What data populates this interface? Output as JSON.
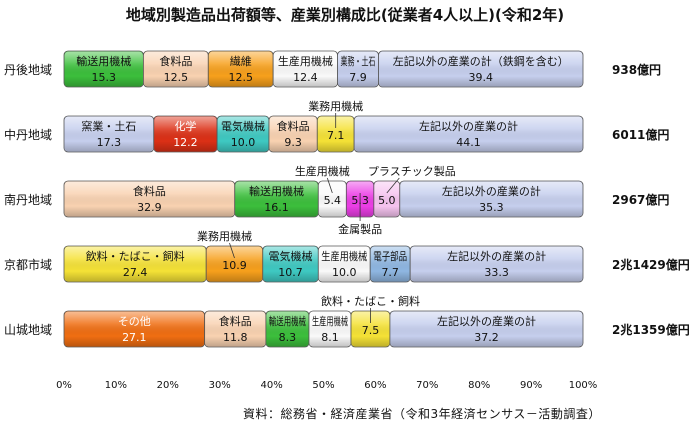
{
  "chart_data": {
    "type": "bar",
    "orientation": "horizontal",
    "stacked": true,
    "percent": true,
    "title": "地域別製造品出荷額等、産業別構成比(従業者4人以上)(令和2年)",
    "source": "資料：総務省・経済産業省（令和3年経済センサス－活動調査）",
    "xlim": [
      0,
      100
    ],
    "x_tick_labels": [
      "0%",
      "10%",
      "20%",
      "30%",
      "40%",
      "50%",
      "60%",
      "70%",
      "80%",
      "90%",
      "100%"
    ],
    "grid": false,
    "categories": [
      "丹後地域",
      "中丹地域",
      "南丹地域",
      "京都市域",
      "山城地域"
    ],
    "totals": [
      "938億円",
      "6011億円",
      "2967億円",
      "2兆1429億円",
      "2兆1359億円"
    ],
    "colors": {
      "green": "#3cbf3c",
      "peach": "#f9d2b1",
      "orange": "#f7a01c",
      "white": "#fafafa",
      "lavender": "#c6cfee",
      "blue": "#8fb7e2",
      "red": "#dc3016",
      "teal": "#3fc9c2",
      "yellow": "#f5e236",
      "magenta": "#ec3ee6",
      "pink": "#f6c4f0",
      "darkorange": "#f06e12",
      "steel": "#8aaad4"
    },
    "rows": [
      {
        "segments": [
          {
            "label": "輸送用機械",
            "value": 15.3,
            "color": "green"
          },
          {
            "label": "食料品",
            "value": 12.5,
            "color": "peach"
          },
          {
            "label": "繊維",
            "value": 12.5,
            "color": "orange"
          },
          {
            "label": "生産用機械",
            "value": 12.4,
            "color": "white"
          },
          {
            "label": "業務・土石",
            "value": 7.9,
            "color": "lavender"
          },
          {
            "label": "左記以外の産業の計（鉄鋼を含む）",
            "value": 39.4,
            "color": "lavender"
          }
        ]
      },
      {
        "segments": [
          {
            "label": "窯業・土石",
            "value": 17.3,
            "color": "lavender"
          },
          {
            "label": "化学",
            "value": 12.2,
            "color": "red"
          },
          {
            "label": "電気機械",
            "value": 10.0,
            "color": "teal"
          },
          {
            "label": "食料品",
            "value": 9.3,
            "color": "peach"
          },
          {
            "label": "業務用機械",
            "value": 7.1,
            "color": "yellow"
          },
          {
            "label": "左記以外の産業の計",
            "value": 44.1,
            "color": "lavender"
          }
        ]
      },
      {
        "segments": [
          {
            "label": "食料品",
            "value": 32.9,
            "color": "peach"
          },
          {
            "label": "輸送用機械",
            "value": 16.1,
            "color": "green"
          },
          {
            "label": "生産用機械",
            "value": 5.4,
            "color": "white"
          },
          {
            "label": "金属製品",
            "value": 5.3,
            "color": "magenta"
          },
          {
            "label": "プラスチック製品",
            "value": 5.0,
            "color": "pink"
          },
          {
            "label": "左記以外の産業の計",
            "value": 35.3,
            "color": "lavender"
          }
        ]
      },
      {
        "segments": [
          {
            "label": "飲料・たばこ・飼料",
            "value": 27.4,
            "color": "yellow"
          },
          {
            "label": "業務用機械",
            "value": 10.9,
            "color": "orange"
          },
          {
            "label": "電気機械",
            "value": 10.7,
            "color": "teal"
          },
          {
            "label": "生産用機械",
            "value": 10.0,
            "color": "white"
          },
          {
            "label": "電子部品",
            "value": 7.7,
            "color": "blue"
          },
          {
            "label": "左記以外の産業の計",
            "value": 33.3,
            "color": "lavender"
          }
        ]
      },
      {
        "segments": [
          {
            "label": "その他",
            "value": 27.1,
            "color": "darkorange"
          },
          {
            "label": "食料品",
            "value": 11.8,
            "color": "peach"
          },
          {
            "label": "輸送用機械",
            "value": 8.3,
            "color": "green"
          },
          {
            "label": "生産用機械",
            "value": 8.1,
            "color": "white"
          },
          {
            "label": "飲料・たばこ・飼料",
            "value": 7.5,
            "color": "yellow"
          },
          {
            "label": "左記以外の産業の計",
            "value": 37.2,
            "color": "lavender"
          }
        ]
      }
    ]
  }
}
